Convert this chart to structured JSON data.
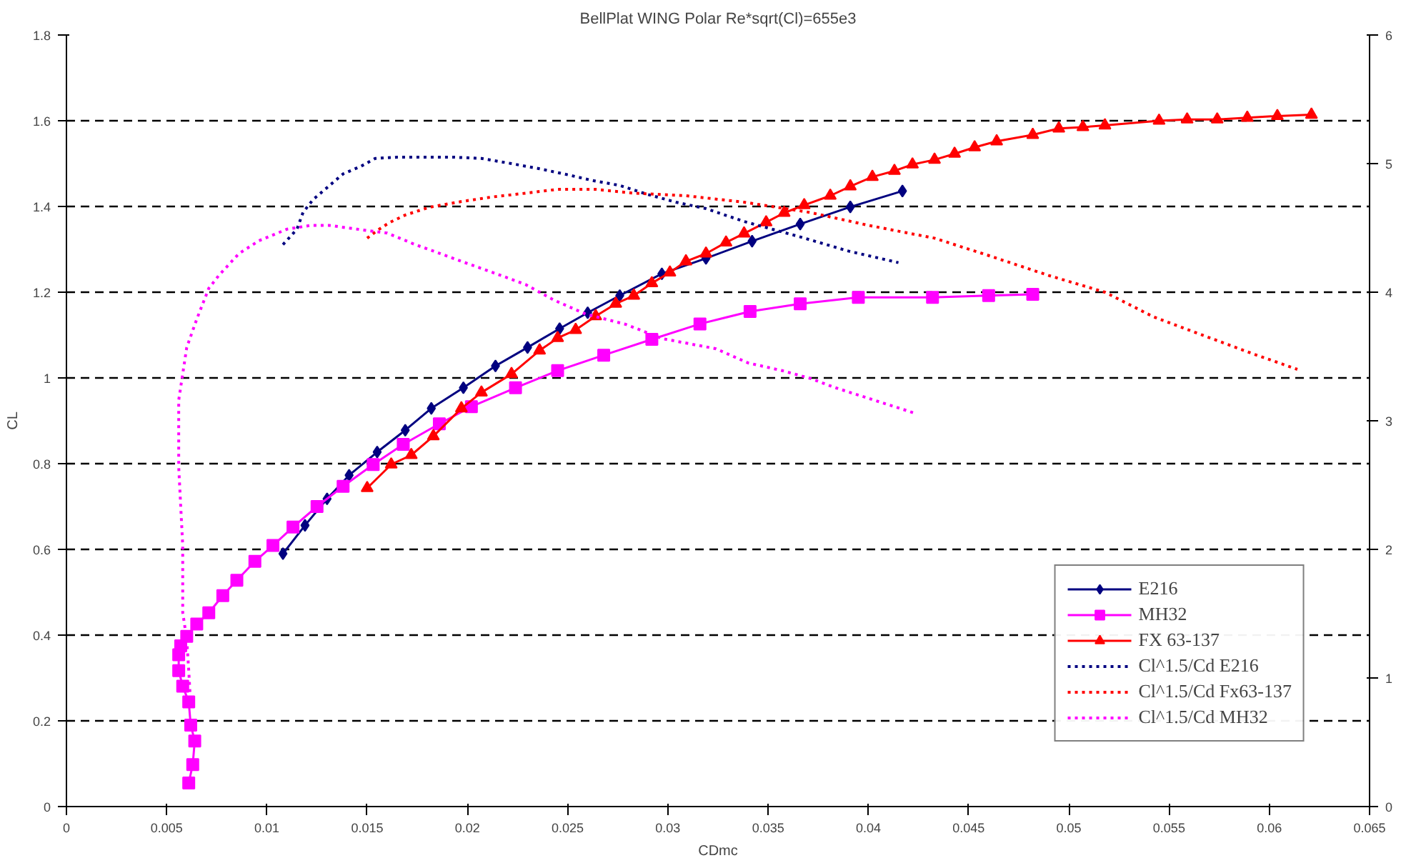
{
  "chart_data": {
    "type": "line",
    "title": "BellPlat WING Polar Re*sqrt(Cl)=655e3",
    "xlabel": "CDmc",
    "ylabel": "CL",
    "xlim": [
      0,
      0.065
    ],
    "xticks": [
      0,
      0.005,
      0.01,
      0.015,
      0.02,
      0.025,
      0.03,
      0.035,
      0.04,
      0.045,
      0.05,
      0.055,
      0.06,
      0.065
    ],
    "ylim": [
      0,
      1.8
    ],
    "yticks": [
      0,
      0.2,
      0.4,
      0.6,
      0.8,
      1,
      1.2,
      1.4,
      1.6,
      1.8
    ],
    "y2lim": [
      0,
      6
    ],
    "y2ticks": [
      0,
      1,
      2,
      3,
      4,
      5,
      6
    ],
    "grid": "y",
    "legend": "bottom right",
    "series": [
      {
        "name": "E216",
        "color": "#000080",
        "marker": "diamond",
        "line_style": "solid",
        "x": [
          0.0108,
          0.0119,
          0.013,
          0.0141,
          0.0155,
          0.0169,
          0.0182,
          0.0198,
          0.0214,
          0.023,
          0.0246,
          0.026,
          0.0276,
          0.0297,
          0.0319,
          0.0342,
          0.0366,
          0.0391,
          0.0417
        ],
        "values": [
          0.59,
          0.656,
          0.718,
          0.773,
          0.827,
          0.878,
          0.929,
          0.977,
          1.028,
          1.071,
          1.115,
          1.152,
          1.192,
          1.243,
          1.279,
          1.319,
          1.359,
          1.399,
          1.436
        ]
      },
      {
        "name": "MH32",
        "color": "#ff00ff",
        "marker": "square",
        "line_style": "solid",
        "x": [
          0.0061,
          0.0063,
          0.0064,
          0.0062,
          0.0061,
          0.0058,
          0.0056,
          0.0056,
          0.0057,
          0.006,
          0.0065,
          0.0071,
          0.0078,
          0.0085,
          0.0094,
          0.0103,
          0.0113,
          0.0125,
          0.0138,
          0.0153,
          0.0168,
          0.0186,
          0.0202,
          0.0224,
          0.0245,
          0.0268,
          0.0292,
          0.0316,
          0.0341,
          0.0366,
          0.0395,
          0.0432,
          0.046,
          0.0482
        ],
        "values": [
          0.055,
          0.098,
          0.153,
          0.19,
          0.244,
          0.281,
          0.317,
          0.354,
          0.375,
          0.397,
          0.426,
          0.452,
          0.492,
          0.528,
          0.572,
          0.609,
          0.652,
          0.7,
          0.747,
          0.798,
          0.845,
          0.893,
          0.933,
          0.977,
          1.017,
          1.053,
          1.09,
          1.126,
          1.155,
          1.173,
          1.188,
          1.188,
          1.192,
          1.195
        ]
      },
      {
        "name": "FX 63-137",
        "color": "#ff0000",
        "marker": "triangle",
        "line_style": "solid",
        "x": [
          0.015,
          0.0162,
          0.0172,
          0.0183,
          0.0197,
          0.0207,
          0.0222,
          0.0236,
          0.0245,
          0.0254,
          0.0264,
          0.0274,
          0.0283,
          0.0292,
          0.0301,
          0.0309,
          0.0319,
          0.0329,
          0.0338,
          0.0349,
          0.0358,
          0.0368,
          0.0381,
          0.0391,
          0.0402,
          0.0413,
          0.0422,
          0.0433,
          0.0443,
          0.0453,
          0.0464,
          0.0482,
          0.0495,
          0.0507,
          0.0518,
          0.0545,
          0.0559,
          0.0574,
          0.0589,
          0.0604,
          0.0621
        ],
        "values": [
          0.743,
          0.798,
          0.82,
          0.864,
          0.929,
          0.966,
          1.009,
          1.064,
          1.093,
          1.112,
          1.144,
          1.173,
          1.192,
          1.221,
          1.246,
          1.272,
          1.29,
          1.316,
          1.337,
          1.363,
          1.385,
          1.403,
          1.425,
          1.447,
          1.469,
          1.483,
          1.498,
          1.509,
          1.523,
          1.538,
          1.552,
          1.567,
          1.582,
          1.585,
          1.589,
          1.6,
          1.603,
          1.603,
          1.607,
          1.611,
          1.614
        ]
      },
      {
        "name": "Cl^1.5/Cd E216",
        "color": "#000080",
        "marker": "none",
        "line_style": "dotted",
        "axis": "y2",
        "x": [
          0.0108,
          0.0115,
          0.0118,
          0.0123,
          0.0129,
          0.0138,
          0.0147,
          0.0154,
          0.0165,
          0.0174,
          0.0193,
          0.0207,
          0.0222,
          0.0236,
          0.0251,
          0.0262,
          0.0276,
          0.029,
          0.0304,
          0.0319,
          0.0338,
          0.0366,
          0.039,
          0.0415
        ],
        "values": [
          4.37,
          4.49,
          4.62,
          4.72,
          4.8,
          4.92,
          4.98,
          5.04,
          5.05,
          5.05,
          5.05,
          5.04,
          5.0,
          4.96,
          4.91,
          4.87,
          4.83,
          4.76,
          4.7,
          4.65,
          4.55,
          4.43,
          4.32,
          4.23
        ]
      },
      {
        "name": "Cl^1.5/Cd Fx63-137",
        "color": "#ff0000",
        "marker": "none",
        "line_style": "dotted",
        "axis": "y2",
        "x": [
          0.015,
          0.0155,
          0.0161,
          0.0169,
          0.0181,
          0.0195,
          0.0212,
          0.0229,
          0.0245,
          0.0264,
          0.0283,
          0.0309,
          0.0338,
          0.0371,
          0.04,
          0.0433,
          0.0461,
          0.049,
          0.0518,
          0.0542,
          0.0566,
          0.0592,
          0.0614
        ],
        "values": [
          4.42,
          4.48,
          4.54,
          4.6,
          4.66,
          4.7,
          4.74,
          4.77,
          4.8,
          4.8,
          4.77,
          4.75,
          4.7,
          4.62,
          4.52,
          4.42,
          4.28,
          4.13,
          4.0,
          3.81,
          3.67,
          3.52,
          3.4
        ]
      },
      {
        "name": "Cl^1.5/Cd MH32",
        "color": "#ff00ff",
        "marker": "none",
        "line_style": "dotted",
        "axis": "y2",
        "x": [
          0.0062,
          0.0061,
          0.006,
          0.0058,
          0.0058,
          0.0058,
          0.0056,
          0.0056,
          0.006,
          0.0065,
          0.0071,
          0.0076,
          0.0086,
          0.0096,
          0.011,
          0.0122,
          0.0131,
          0.0145,
          0.016,
          0.0174,
          0.0183,
          0.0197,
          0.0215,
          0.0229,
          0.0243,
          0.0259,
          0.0279,
          0.0297,
          0.0324,
          0.034,
          0.0357,
          0.0371,
          0.0383,
          0.0423
        ],
        "values": [
          0.78,
          1.06,
          1.3,
          1.51,
          1.82,
          2.03,
          2.64,
          3.16,
          3.57,
          3.79,
          4.03,
          4.13,
          4.3,
          4.4,
          4.49,
          4.52,
          4.52,
          4.49,
          4.46,
          4.37,
          4.32,
          4.24,
          4.14,
          4.06,
          3.94,
          3.83,
          3.75,
          3.64,
          3.56,
          3.45,
          3.39,
          3.33,
          3.26,
          3.06
        ]
      }
    ]
  }
}
